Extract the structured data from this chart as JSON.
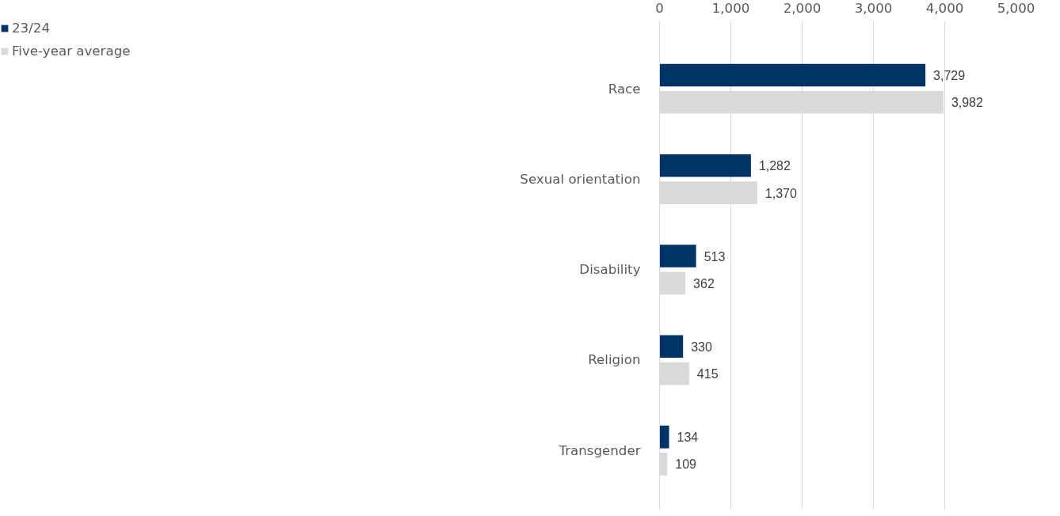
{
  "chart_data": {
    "type": "bar",
    "orientation": "horizontal",
    "categories": [
      "Race",
      "Sexual orientation",
      "Disability",
      "Religion",
      "Transgender"
    ],
    "series": [
      {
        "name": "23/24",
        "color": "#003366",
        "values": [
          3729,
          1282,
          513,
          330,
          134
        ],
        "value_labels": [
          "3,729",
          "1,282",
          "513",
          "330",
          "134"
        ]
      },
      {
        "name": "Five-year average",
        "color": "#d9d9d9",
        "values": [
          3982,
          1370,
          362,
          415,
          109
        ],
        "value_labels": [
          "3,982",
          "1,370",
          "362",
          "415",
          "109"
        ]
      }
    ],
    "xlim": [
      0,
      5000
    ],
    "xticks": [
      {
        "value": 0,
        "label": "0"
      },
      {
        "value": 1000,
        "label": "1,000"
      },
      {
        "value": 2000,
        "label": "2,000"
      },
      {
        "value": 3000,
        "label": "3,000"
      },
      {
        "value": 4000,
        "label": "4,000"
      },
      {
        "value": 5000,
        "label": "5,000"
      }
    ],
    "grid": "x",
    "legend": "top left"
  }
}
